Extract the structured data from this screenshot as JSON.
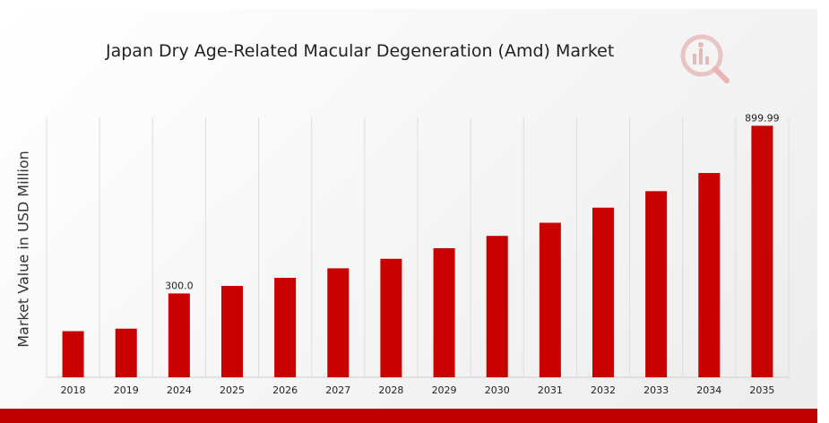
{
  "chart_data": {
    "type": "bar",
    "title": "Japan Dry Age-Related Macular Degeneration (Amd) Market",
    "xlabel": "",
    "ylabel": "Market Value in USD Million",
    "categories": [
      "2018",
      "2019",
      "2024",
      "2025",
      "2026",
      "2027",
      "2028",
      "2029",
      "2030",
      "2031",
      "2032",
      "2033",
      "2034",
      "2035"
    ],
    "values": [
      165,
      174,
      300.0,
      327,
      356,
      390,
      424,
      462,
      506,
      553,
      607,
      666,
      731,
      899.99
    ],
    "data_labels": [
      {
        "index": 2,
        "text": "300.0"
      },
      {
        "index": 13,
        "text": "899.99"
      }
    ],
    "ylim": [
      0,
      930
    ],
    "grid": "vertical",
    "legend": "none",
    "bar_color": "#c80000"
  },
  "logo_icon": "market-research-logo-icon",
  "colors": {
    "bar": "#c80000",
    "band": "#c00000"
  }
}
